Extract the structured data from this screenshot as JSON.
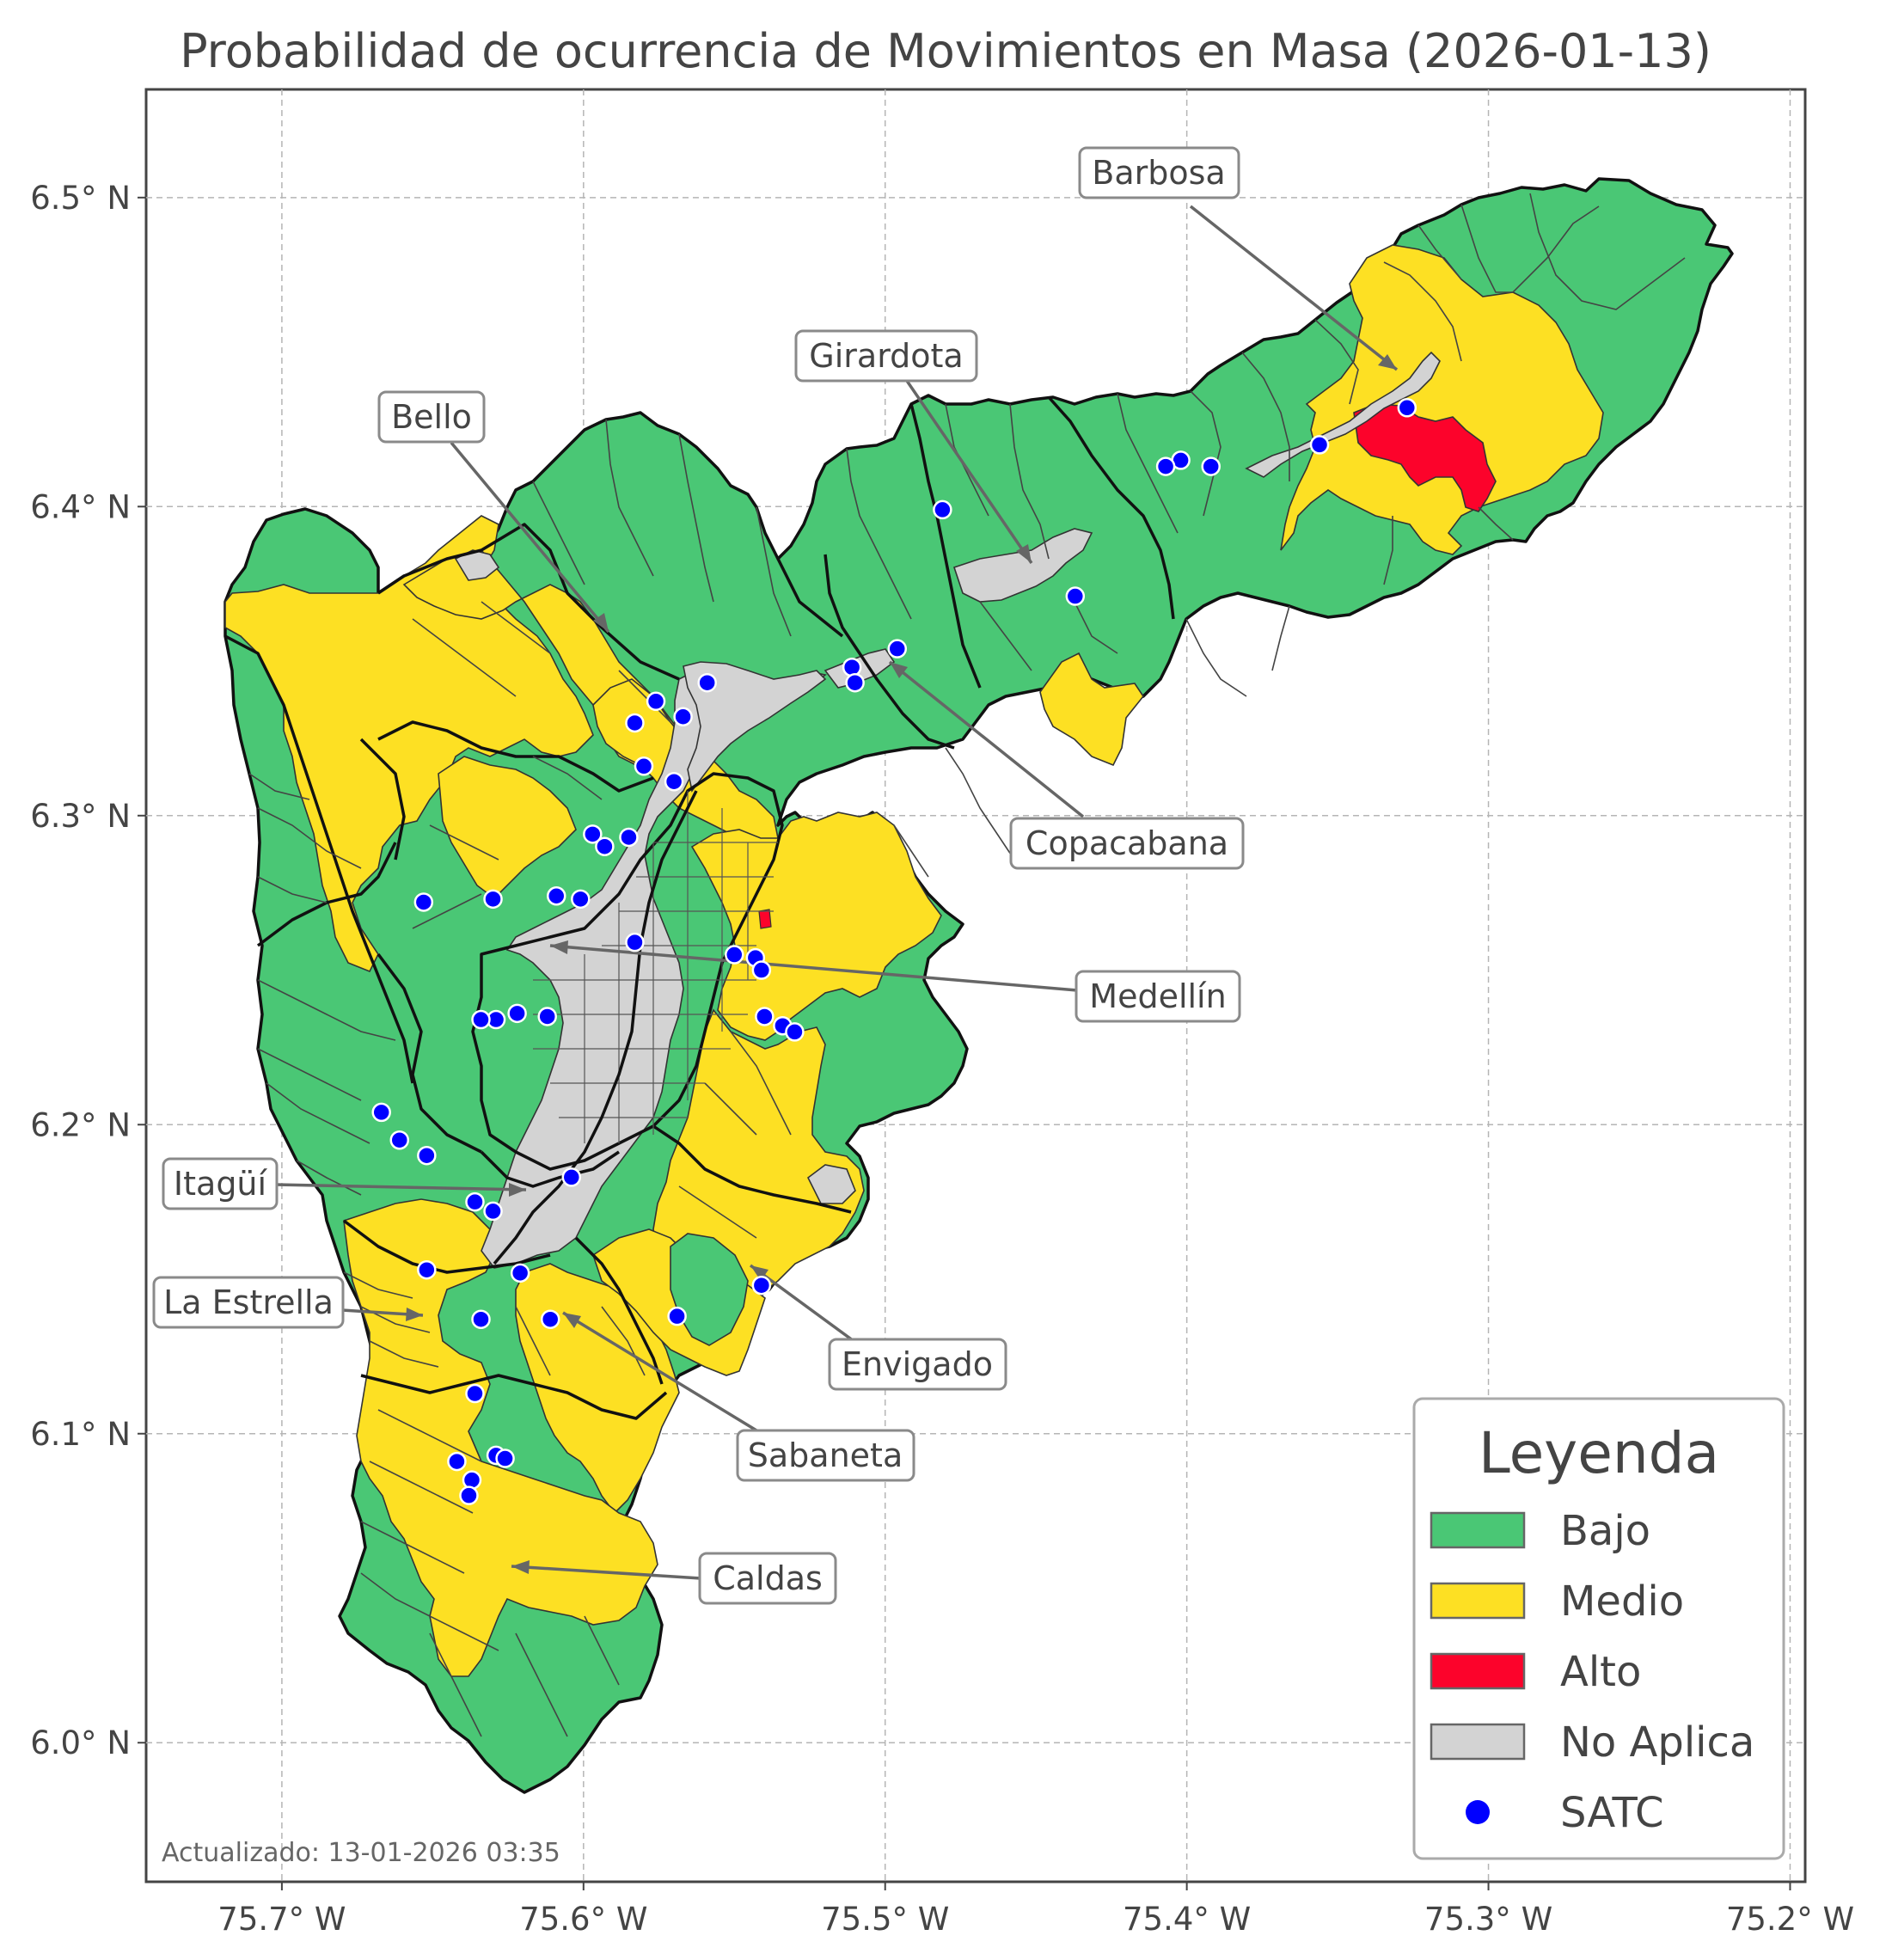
{
  "title": "Probabilidad de ocurrencia de Movimientos en Masa (2026-01-13)",
  "updated": "Actualizado: 13-01-2026 03:35",
  "axes": {
    "x_ticks": [
      "75.7° W",
      "75.6° W",
      "75.5° W",
      "75.4° W",
      "75.3° W",
      "75.2° W"
    ],
    "y_ticks": [
      "6.5° N",
      "6.4° N",
      "6.3° N",
      "6.2° N",
      "6.1° N",
      "6.0° N"
    ],
    "lon_range": [
      -75.745,
      -75.195
    ],
    "lat_range": [
      5.955,
      6.535
    ],
    "grid": true
  },
  "colors": {
    "bajo": "#4ac775",
    "medio": "#fde023",
    "alto": "#fc032b",
    "no_aplica": "#d3d3d3",
    "satc": "#0000ff"
  },
  "municipalities": [
    {
      "name": "Barbosa",
      "lon": -75.33,
      "lat": 6.44
    },
    {
      "name": "Girardota",
      "lon": -75.45,
      "lat": 6.38
    },
    {
      "name": "Bello",
      "lon": -75.59,
      "lat": 6.36
    },
    {
      "name": "Copacabana",
      "lon": -75.5,
      "lat": 6.35
    },
    {
      "name": "Medellín",
      "lon": -75.61,
      "lat": 6.26
    },
    {
      "name": "Itagüí",
      "lon": -75.62,
      "lat": 6.18
    },
    {
      "name": "La Estrella",
      "lon": -75.64,
      "lat": 6.14
    },
    {
      "name": "Envigado",
      "lon": -75.55,
      "lat": 6.15
    },
    {
      "name": "Sabaneta",
      "lon": -75.61,
      "lat": 6.14
    },
    {
      "name": "Caldas",
      "lon": -75.62,
      "lat": 6.055
    }
  ],
  "satc_stations": [
    [
      -75.327,
      6.432
    ],
    [
      -75.356,
      6.42
    ],
    [
      -75.392,
      6.413
    ],
    [
      -75.402,
      6.415
    ],
    [
      -75.407,
      6.413
    ],
    [
      -75.481,
      6.399
    ],
    [
      -75.437,
      6.371
    ],
    [
      -75.496,
      6.354
    ],
    [
      -75.511,
      6.348
    ],
    [
      -75.51,
      6.343
    ],
    [
      -75.559,
      6.343
    ],
    [
      -75.576,
      6.337
    ],
    [
      -75.583,
      6.33
    ],
    [
      -75.567,
      6.332
    ],
    [
      -75.58,
      6.316
    ],
    [
      -75.57,
      6.311
    ],
    [
      -75.597,
      6.294
    ],
    [
      -75.585,
      6.293
    ],
    [
      -75.593,
      6.29
    ],
    [
      -75.653,
      6.272
    ],
    [
      -75.63,
      6.273
    ],
    [
      -75.609,
      6.274
    ],
    [
      -75.601,
      6.273
    ],
    [
      -75.583,
      6.259
    ],
    [
      -75.55,
      6.255
    ],
    [
      -75.543,
      6.254
    ],
    [
      -75.541,
      6.25
    ],
    [
      -75.54,
      6.235
    ],
    [
      -75.534,
      6.232
    ],
    [
      -75.53,
      6.23
    ],
    [
      -75.622,
      6.236
    ],
    [
      -75.629,
      6.234
    ],
    [
      -75.634,
      6.234
    ],
    [
      -75.612,
      6.235
    ],
    [
      -75.667,
      6.204
    ],
    [
      -75.661,
      6.195
    ],
    [
      -75.652,
      6.19
    ],
    [
      -75.604,
      6.183
    ],
    [
      -75.636,
      6.175
    ],
    [
      -75.63,
      6.172
    ],
    [
      -75.652,
      6.153
    ],
    [
      -75.621,
      6.152
    ],
    [
      -75.541,
      6.148
    ],
    [
      -75.569,
      6.138
    ],
    [
      -75.611,
      6.137
    ],
    [
      -75.634,
      6.137
    ],
    [
      -75.636,
      6.113
    ],
    [
      -75.642,
      6.091
    ],
    [
      -75.629,
      6.093
    ],
    [
      -75.626,
      6.092
    ],
    [
      -75.637,
      6.085
    ],
    [
      -75.638,
      6.08
    ]
  ],
  "legend": {
    "title": "Leyenda",
    "items": [
      {
        "label": "Bajo",
        "key": "bajo",
        "kind": "patch"
      },
      {
        "label": "Medio",
        "key": "medio",
        "kind": "patch"
      },
      {
        "label": "Alto",
        "key": "alto",
        "kind": "patch"
      },
      {
        "label": "No Aplica",
        "key": "no_aplica",
        "kind": "patch"
      },
      {
        "label": "SATC",
        "key": "satc",
        "kind": "marker"
      }
    ]
  }
}
